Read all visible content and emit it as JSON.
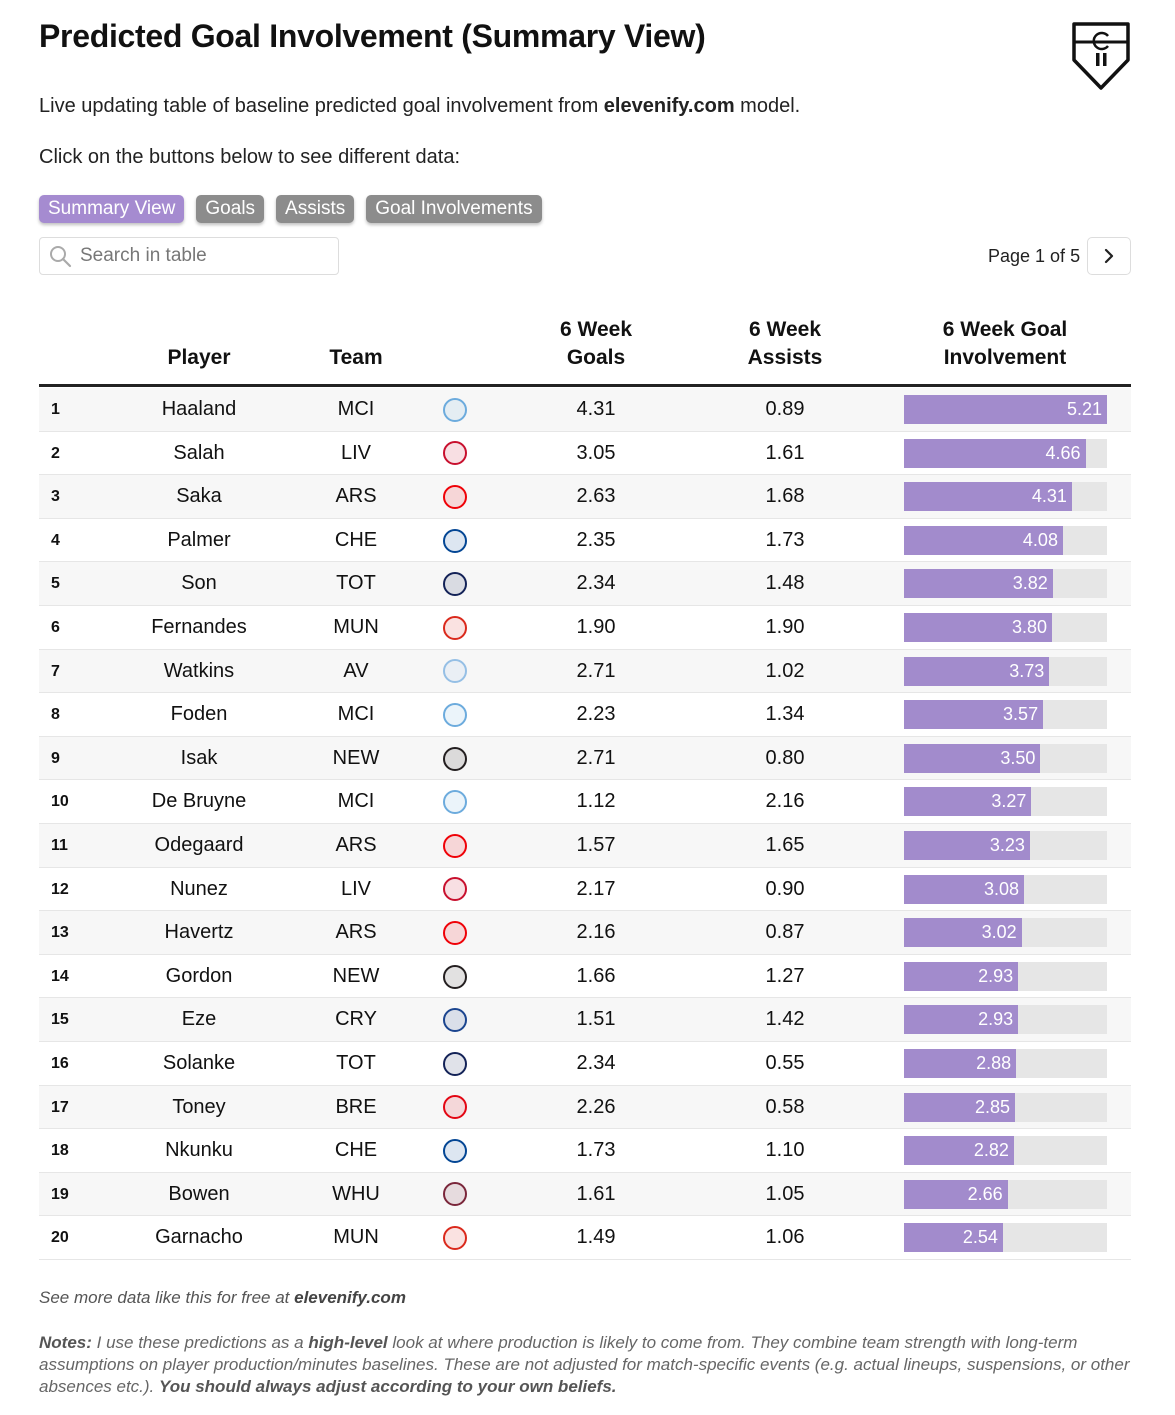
{
  "header": {
    "title": "Predicted Goal Involvement (Summary View)",
    "subtitle_prefix": "Live updating table of baseline predicted goal involvement from ",
    "subtitle_brand": "elevenify.com",
    "subtitle_suffix": " model.",
    "instruction": "Click on the buttons below to see different data:"
  },
  "buttons": [
    {
      "label": "Summary View",
      "active": true
    },
    {
      "label": "Goals",
      "active": false
    },
    {
      "label": "Assists",
      "active": false
    },
    {
      "label": "Goal Involvements",
      "active": false
    }
  ],
  "search": {
    "placeholder": "Search in table",
    "value": ""
  },
  "pager": {
    "label": "Page 1 of 5"
  },
  "table": {
    "columns": {
      "player": "Player",
      "team": "Team",
      "goals_line1": "6 Week",
      "goals_line2": "Goals",
      "assists_line1": "6 Week",
      "assists_line2": "Assists",
      "gi_line1": "6 Week Goal",
      "gi_line2": "Involvement"
    },
    "gi_max": 5.21,
    "rows": [
      {
        "rank": "1",
        "player": "Haaland",
        "team": "MCI",
        "goals": "4.31",
        "assists": "0.89",
        "gi": "5.21"
      },
      {
        "rank": "2",
        "player": "Salah",
        "team": "LIV",
        "goals": "3.05",
        "assists": "1.61",
        "gi": "4.66"
      },
      {
        "rank": "3",
        "player": "Saka",
        "team": "ARS",
        "goals": "2.63",
        "assists": "1.68",
        "gi": "4.31"
      },
      {
        "rank": "4",
        "player": "Palmer",
        "team": "CHE",
        "goals": "2.35",
        "assists": "1.73",
        "gi": "4.08"
      },
      {
        "rank": "5",
        "player": "Son",
        "team": "TOT",
        "goals": "2.34",
        "assists": "1.48",
        "gi": "3.82"
      },
      {
        "rank": "6",
        "player": "Fernandes",
        "team": "MUN",
        "goals": "1.90",
        "assists": "1.90",
        "gi": "3.80"
      },
      {
        "rank": "7",
        "player": "Watkins",
        "team": "AV",
        "goals": "2.71",
        "assists": "1.02",
        "gi": "3.73"
      },
      {
        "rank": "8",
        "player": "Foden",
        "team": "MCI",
        "goals": "2.23",
        "assists": "1.34",
        "gi": "3.57"
      },
      {
        "rank": "9",
        "player": "Isak",
        "team": "NEW",
        "goals": "2.71",
        "assists": "0.80",
        "gi": "3.50"
      },
      {
        "rank": "10",
        "player": "De Bruyne",
        "team": "MCI",
        "goals": "1.12",
        "assists": "2.16",
        "gi": "3.27"
      },
      {
        "rank": "11",
        "player": "Odegaard",
        "team": "ARS",
        "goals": "1.57",
        "assists": "1.65",
        "gi": "3.23"
      },
      {
        "rank": "12",
        "player": "Nunez",
        "team": "LIV",
        "goals": "2.17",
        "assists": "0.90",
        "gi": "3.08"
      },
      {
        "rank": "13",
        "player": "Havertz",
        "team": "ARS",
        "goals": "2.16",
        "assists": "0.87",
        "gi": "3.02"
      },
      {
        "rank": "14",
        "player": "Gordon",
        "team": "NEW",
        "goals": "1.66",
        "assists": "1.27",
        "gi": "2.93"
      },
      {
        "rank": "15",
        "player": "Eze",
        "team": "CRY",
        "goals": "1.51",
        "assists": "1.42",
        "gi": "2.93"
      },
      {
        "rank": "16",
        "player": "Solanke",
        "team": "TOT",
        "goals": "2.34",
        "assists": "0.55",
        "gi": "2.88"
      },
      {
        "rank": "17",
        "player": "Toney",
        "team": "BRE",
        "goals": "2.26",
        "assists": "0.58",
        "gi": "2.85"
      },
      {
        "rank": "18",
        "player": "Nkunku",
        "team": "CHE",
        "goals": "1.73",
        "assists": "1.10",
        "gi": "2.82"
      },
      {
        "rank": "19",
        "player": "Bowen",
        "team": "WHU",
        "goals": "1.61",
        "assists": "1.05",
        "gi": "2.66"
      },
      {
        "rank": "20",
        "player": "Garnacho",
        "team": "MUN",
        "goals": "1.49",
        "assists": "1.06",
        "gi": "2.54"
      }
    ]
  },
  "team_colors": {
    "MCI": "#6cabdd",
    "LIV": "#c8102e",
    "ARS": "#ef0107",
    "CHE": "#034694",
    "TOT": "#132257",
    "MUN": "#da291c",
    "AV": "#95bfe5",
    "NEW": "#241f20",
    "CRY": "#1b458f",
    "BRE": "#e30613",
    "WHU": "#7a263a"
  },
  "footer": {
    "prefix": "See more data like this for free at ",
    "brand": "elevenify.com"
  },
  "notes": {
    "label": "Notes:",
    "part1": " I use these predictions as a ",
    "emph1": "high-level",
    "part2": " look at where production is likely to come from. They combine team strength with long-term assumptions on player production/minutes baselines. These are not adjusted for match-specific events (e.g. actual lineups, suspensions, or other absences etc.). ",
    "emph2": "You should always adjust according to your own beliefs."
  },
  "colors": {
    "accent": "#a58bd0",
    "bar": "#a28bcc",
    "button_inactive": "#8c8c8c"
  }
}
